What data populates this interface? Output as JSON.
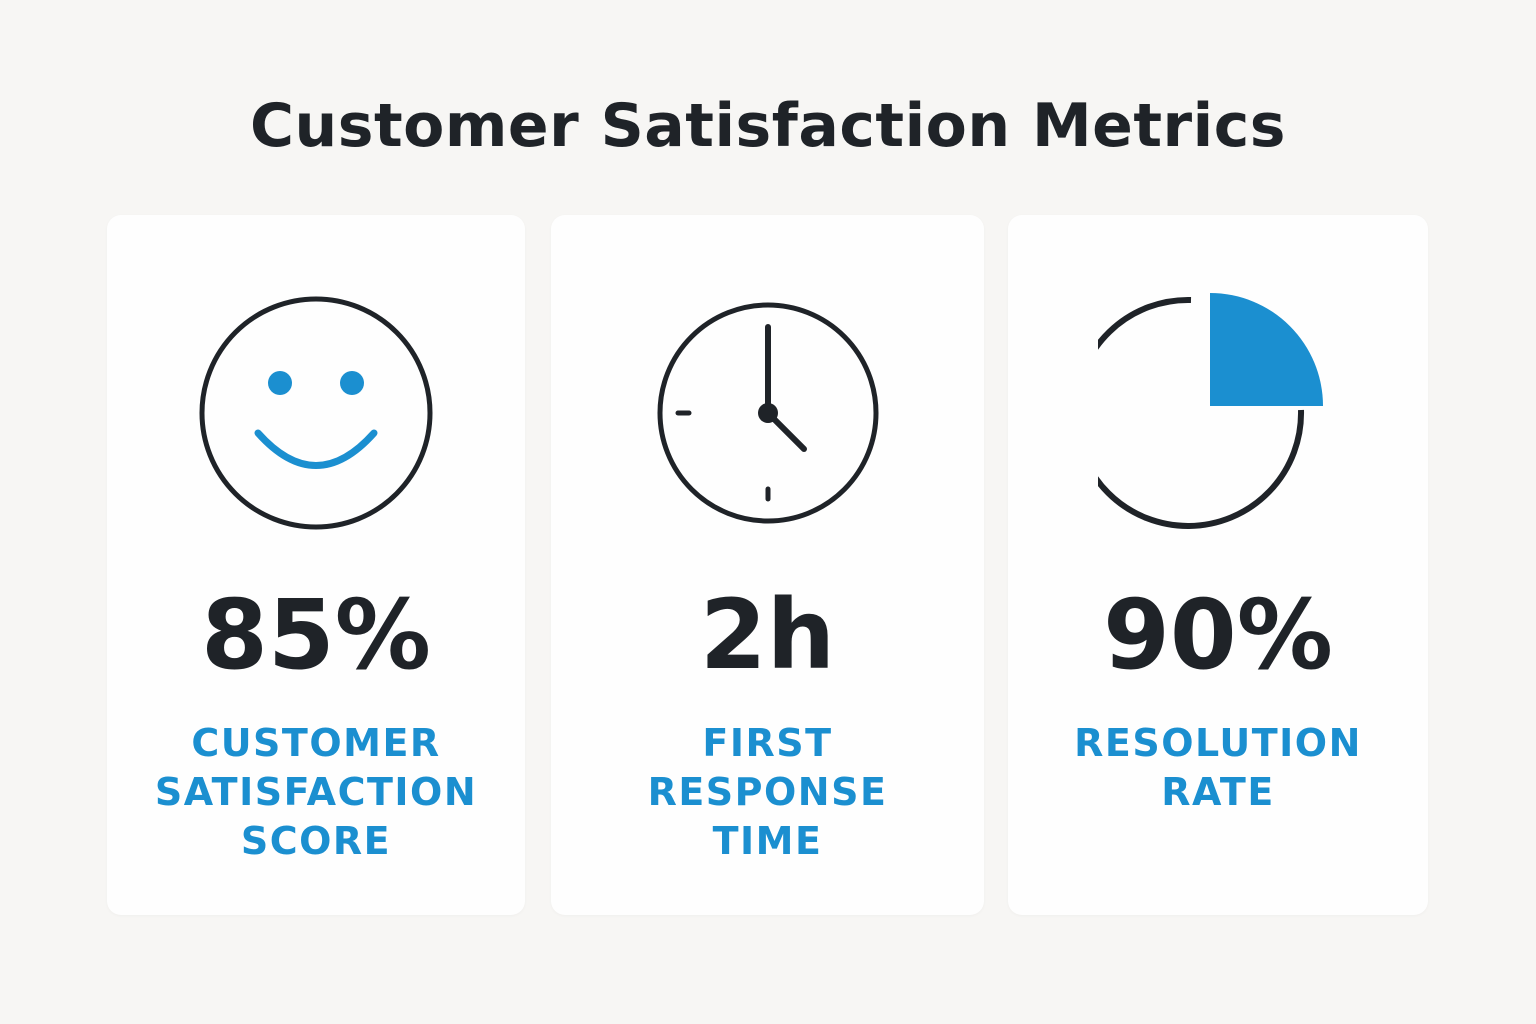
{
  "title": "Customer Satisfaction Metrics",
  "colors": {
    "accent": "#1b8fd0",
    "text": "#1f2328",
    "background": "#f7f6f4",
    "card": "#fefefe"
  },
  "metrics": [
    {
      "icon": "smiley-face-icon",
      "value": "85%",
      "label_lines": [
        "CUSTOMER",
        "SATISFACTION",
        "SCORE"
      ]
    },
    {
      "icon": "clock-icon",
      "value": "2h",
      "label_lines": [
        "FIRST",
        "RESPONSE",
        "TIME"
      ]
    },
    {
      "icon": "pie-chart-icon",
      "value": "90%",
      "label_lines": [
        "RESOLUTION",
        "RATE"
      ]
    }
  ]
}
